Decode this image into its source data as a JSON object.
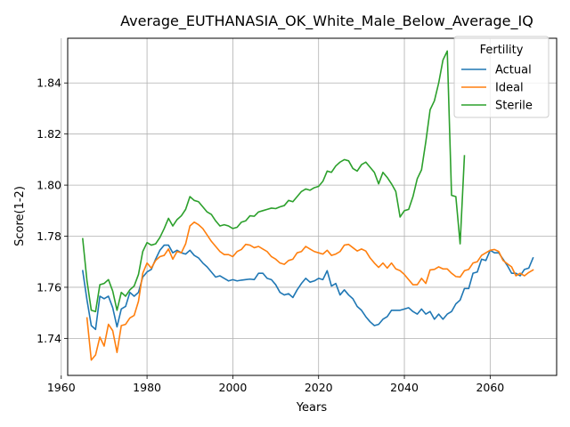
{
  "chart_data": {
    "type": "line",
    "title": "Average_EUTHANASIA_OK_White_Male_Below_Average_IQ",
    "xlabel": "Years",
    "ylabel": "Score(1-2)",
    "xlim": [
      1961.5,
      2075.5
    ],
    "ylim": [
      1.7255,
      1.8575
    ],
    "xticks": [
      1960,
      1980,
      2000,
      2020,
      2040,
      2060
    ],
    "yticks": [
      1.74,
      1.76,
      1.78,
      1.8,
      1.82,
      1.84
    ],
    "ytick_labels": [
      "1.74",
      "1.76",
      "1.78",
      "1.80",
      "1.82",
      "1.84"
    ],
    "grid": true,
    "legend": {
      "title": "Fertility",
      "placement": "top-right"
    },
    "series": [
      {
        "name": "Actual",
        "color": "#1f77b4",
        "points": [
          [
            1965,
            1.7665
          ],
          [
            1966,
            1.755
          ],
          [
            1967,
            1.745
          ],
          [
            1968,
            1.7435
          ],
          [
            1969,
            1.7565
          ],
          [
            1970,
            1.7555
          ],
          [
            1971,
            1.7565
          ],
          [
            1972,
            1.752
          ],
          [
            1973,
            1.7445
          ],
          [
            1974,
            1.7515
          ],
          [
            1975,
            1.7525
          ],
          [
            1976,
            1.758
          ],
          [
            1977,
            1.7565
          ],
          [
            1978,
            1.758
          ],
          [
            1979,
            1.764
          ],
          [
            1980,
            1.766
          ],
          [
            1981,
            1.767
          ],
          [
            1982,
            1.771
          ],
          [
            1983,
            1.7745
          ],
          [
            1984,
            1.7765
          ],
          [
            1985,
            1.7765
          ],
          [
            1986,
            1.7735
          ],
          [
            1987,
            1.7745
          ],
          [
            1988,
            1.7735
          ],
          [
            1989,
            1.773
          ],
          [
            1990,
            1.7745
          ],
          [
            1991,
            1.7725
          ],
          [
            1992,
            1.7715
          ],
          [
            1993,
            1.7695
          ],
          [
            1994,
            1.768
          ],
          [
            1995,
            1.766
          ],
          [
            1996,
            1.764
          ],
          [
            1997,
            1.7645
          ],
          [
            1998,
            1.7635
          ],
          [
            1999,
            1.7625
          ],
          [
            2000,
            1.763
          ],
          [
            2001,
            1.7625
          ],
          [
            2002,
            1.7628
          ],
          [
            2003,
            1.763
          ],
          [
            2004,
            1.7632
          ],
          [
            2005,
            1.763
          ],
          [
            2006,
            1.7655
          ],
          [
            2007,
            1.7655
          ],
          [
            2008,
            1.7635
          ],
          [
            2009,
            1.763
          ],
          [
            2010,
            1.761
          ],
          [
            2011,
            1.758
          ],
          [
            2012,
            1.757
          ],
          [
            2013,
            1.7575
          ],
          [
            2014,
            1.756
          ],
          [
            2015,
            1.759
          ],
          [
            2016,
            1.7615
          ],
          [
            2017,
            1.7635
          ],
          [
            2018,
            1.762
          ],
          [
            2019,
            1.7625
          ],
          [
            2020,
            1.7635
          ],
          [
            2021,
            1.763
          ],
          [
            2022,
            1.7665
          ],
          [
            2023,
            1.7605
          ],
          [
            2024,
            1.7615
          ],
          [
            2025,
            1.757
          ],
          [
            2026,
            1.759
          ],
          [
            2027,
            1.757
          ],
          [
            2028,
            1.7555
          ],
          [
            2029,
            1.7525
          ],
          [
            2030,
            1.751
          ],
          [
            2031,
            1.7485
          ],
          [
            2032,
            1.7465
          ],
          [
            2033,
            1.745
          ],
          [
            2034,
            1.7455
          ],
          [
            2035,
            1.7475
          ],
          [
            2036,
            1.7485
          ],
          [
            2037,
            1.751
          ],
          [
            2038,
            1.751
          ],
          [
            2039,
            1.751
          ],
          [
            2040,
            1.7515
          ],
          [
            2041,
            1.752
          ],
          [
            2042,
            1.7505
          ],
          [
            2043,
            1.7495
          ],
          [
            2044,
            1.7515
          ],
          [
            2045,
            1.7495
          ],
          [
            2046,
            1.7505
          ],
          [
            2047,
            1.7475
          ],
          [
            2048,
            1.7495
          ],
          [
            2049,
            1.7475
          ],
          [
            2050,
            1.7495
          ],
          [
            2051,
            1.7505
          ],
          [
            2052,
            1.7535
          ],
          [
            2053,
            1.755
          ],
          [
            2054,
            1.7595
          ],
          [
            2055,
            1.7595
          ],
          [
            2056,
            1.7655
          ],
          [
            2057,
            1.766
          ],
          [
            2058,
            1.771
          ],
          [
            2059,
            1.7705
          ],
          [
            2060,
            1.7745
          ],
          [
            2061,
            1.7735
          ],
          [
            2062,
            1.7735
          ],
          [
            2063,
            1.771
          ],
          [
            2064,
            1.7685
          ],
          [
            2065,
            1.7655
          ],
          [
            2066,
            1.7655
          ],
          [
            2067,
            1.7645
          ],
          [
            2068,
            1.767
          ],
          [
            2069,
            1.7675
          ],
          [
            2070,
            1.7715
          ]
        ]
      },
      {
        "name": "Ideal",
        "color": "#ff7f0e",
        "points": [
          [
            1966,
            1.748
          ],
          [
            1967,
            1.7315
          ],
          [
            1968,
            1.7335
          ],
          [
            1969,
            1.7405
          ],
          [
            1970,
            1.737
          ],
          [
            1971,
            1.7455
          ],
          [
            1972,
            1.743
          ],
          [
            1973,
            1.7345
          ],
          [
            1974,
            1.745
          ],
          [
            1975,
            1.7455
          ],
          [
            1976,
            1.748
          ],
          [
            1977,
            1.749
          ],
          [
            1978,
            1.7545
          ],
          [
            1979,
            1.7655
          ],
          [
            1980,
            1.7695
          ],
          [
            1981,
            1.7675
          ],
          [
            1982,
            1.7705
          ],
          [
            1983,
            1.772
          ],
          [
            1984,
            1.7725
          ],
          [
            1985,
            1.775
          ],
          [
            1986,
            1.771
          ],
          [
            1987,
            1.774
          ],
          [
            1988,
            1.7735
          ],
          [
            1989,
            1.777
          ],
          [
            1990,
            1.784
          ],
          [
            1991,
            1.7855
          ],
          [
            1992,
            1.7845
          ],
          [
            1993,
            1.783
          ],
          [
            1994,
            1.7805
          ],
          [
            1995,
            1.778
          ],
          [
            1996,
            1.776
          ],
          [
            1997,
            1.774
          ],
          [
            1998,
            1.7728
          ],
          [
            1999,
            1.7728
          ],
          [
            2000,
            1.772
          ],
          [
            2001,
            1.774
          ],
          [
            2002,
            1.7748
          ],
          [
            2003,
            1.7768
          ],
          [
            2004,
            1.7765
          ],
          [
            2005,
            1.7755
          ],
          [
            2006,
            1.776
          ],
          [
            2007,
            1.775
          ],
          [
            2008,
            1.774
          ],
          [
            2009,
            1.772
          ],
          [
            2010,
            1.771
          ],
          [
            2011,
            1.7695
          ],
          [
            2012,
            1.769
          ],
          [
            2013,
            1.7705
          ],
          [
            2014,
            1.771
          ],
          [
            2015,
            1.7735
          ],
          [
            2016,
            1.774
          ],
          [
            2017,
            1.776
          ],
          [
            2018,
            1.775
          ],
          [
            2019,
            1.774
          ],
          [
            2020,
            1.7735
          ],
          [
            2021,
            1.773
          ],
          [
            2022,
            1.7745
          ],
          [
            2023,
            1.7725
          ],
          [
            2024,
            1.773
          ],
          [
            2025,
            1.774
          ],
          [
            2026,
            1.7765
          ],
          [
            2027,
            1.7768
          ],
          [
            2028,
            1.7755
          ],
          [
            2029,
            1.7742
          ],
          [
            2030,
            1.775
          ],
          [
            2031,
            1.7742
          ],
          [
            2032,
            1.7715
          ],
          [
            2033,
            1.7695
          ],
          [
            2034,
            1.7678
          ],
          [
            2035,
            1.7695
          ],
          [
            2036,
            1.7675
          ],
          [
            2037,
            1.7695
          ],
          [
            2038,
            1.7672
          ],
          [
            2039,
            1.7665
          ],
          [
            2040,
            1.765
          ],
          [
            2041,
            1.763
          ],
          [
            2042,
            1.761
          ],
          [
            2043,
            1.761
          ],
          [
            2044,
            1.7635
          ],
          [
            2045,
            1.7615
          ],
          [
            2046,
            1.7668
          ],
          [
            2047,
            1.767
          ],
          [
            2048,
            1.768
          ],
          [
            2049,
            1.7672
          ],
          [
            2050,
            1.7672
          ],
          [
            2051,
            1.7655
          ],
          [
            2052,
            1.7642
          ],
          [
            2053,
            1.764
          ],
          [
            2054,
            1.7665
          ],
          [
            2055,
            1.767
          ],
          [
            2056,
            1.7695
          ],
          [
            2057,
            1.77
          ],
          [
            2058,
            1.7725
          ],
          [
            2059,
            1.7735
          ],
          [
            2060,
            1.7745
          ],
          [
            2061,
            1.7748
          ],
          [
            2062,
            1.774
          ],
          [
            2063,
            1.7705
          ],
          [
            2064,
            1.7692
          ],
          [
            2065,
            1.768
          ],
          [
            2066,
            1.7645
          ],
          [
            2067,
            1.7655
          ],
          [
            2068,
            1.7645
          ],
          [
            2069,
            1.7658
          ],
          [
            2070,
            1.7668
          ]
        ]
      },
      {
        "name": "Sterile",
        "color": "#2ca02c",
        "points": [
          [
            1965,
            1.779
          ],
          [
            1966,
            1.7625
          ],
          [
            1967,
            1.751
          ],
          [
            1968,
            1.7505
          ],
          [
            1969,
            1.761
          ],
          [
            1970,
            1.7615
          ],
          [
            1971,
            1.763
          ],
          [
            1972,
            1.7585
          ],
          [
            1973,
            1.751
          ],
          [
            1974,
            1.758
          ],
          [
            1975,
            1.7565
          ],
          [
            1976,
            1.759
          ],
          [
            1977,
            1.7605
          ],
          [
            1978,
            1.765
          ],
          [
            1979,
            1.774
          ],
          [
            1980,
            1.7775
          ],
          [
            1981,
            1.7765
          ],
          [
            1982,
            1.777
          ],
          [
            1983,
            1.7795
          ],
          [
            1984,
            1.783
          ],
          [
            1985,
            1.787
          ],
          [
            1986,
            1.784
          ],
          [
            1987,
            1.7865
          ],
          [
            1988,
            1.788
          ],
          [
            1989,
            1.7905
          ],
          [
            1990,
            1.7955
          ],
          [
            1991,
            1.794
          ],
          [
            1992,
            1.7935
          ],
          [
            1993,
            1.7915
          ],
          [
            1994,
            1.7895
          ],
          [
            1995,
            1.7885
          ],
          [
            1996,
            1.786
          ],
          [
            1997,
            1.784
          ],
          [
            1998,
            1.7845
          ],
          [
            1999,
            1.784
          ],
          [
            2000,
            1.783
          ],
          [
            2001,
            1.7835
          ],
          [
            2002,
            1.7855
          ],
          [
            2003,
            1.786
          ],
          [
            2004,
            1.788
          ],
          [
            2005,
            1.7878
          ],
          [
            2006,
            1.7895
          ],
          [
            2007,
            1.79
          ],
          [
            2008,
            1.7905
          ],
          [
            2009,
            1.791
          ],
          [
            2010,
            1.7908
          ],
          [
            2011,
            1.7915
          ],
          [
            2012,
            1.792
          ],
          [
            2013,
            1.794
          ],
          [
            2014,
            1.7935
          ],
          [
            2015,
            1.7955
          ],
          [
            2016,
            1.7975
          ],
          [
            2017,
            1.7985
          ],
          [
            2018,
            1.798
          ],
          [
            2019,
            1.799
          ],
          [
            2020,
            1.7995
          ],
          [
            2021,
            1.8015
          ],
          [
            2022,
            1.8055
          ],
          [
            2023,
            1.805
          ],
          [
            2024,
            1.8075
          ],
          [
            2025,
            1.809
          ],
          [
            2026,
            1.81
          ],
          [
            2027,
            1.8095
          ],
          [
            2028,
            1.8065
          ],
          [
            2029,
            1.8055
          ],
          [
            2030,
            1.808
          ],
          [
            2031,
            1.809
          ],
          [
            2032,
            1.807
          ],
          [
            2033,
            1.805
          ],
          [
            2034,
            1.8005
          ],
          [
            2035,
            1.805
          ],
          [
            2036,
            1.803
          ],
          [
            2037,
            1.8005
          ],
          [
            2038,
            1.7975
          ],
          [
            2039,
            1.7875
          ],
          [
            2040,
            1.79
          ],
          [
            2041,
            1.7905
          ],
          [
            2042,
            1.7955
          ],
          [
            2043,
            1.8025
          ],
          [
            2044,
            1.806
          ],
          [
            2045,
            1.817
          ],
          [
            2046,
            1.8295
          ],
          [
            2047,
            1.833
          ],
          [
            2048,
            1.84
          ],
          [
            2049,
            1.849
          ],
          [
            2050,
            1.8525
          ],
          [
            2051,
            1.796
          ],
          [
            2052,
            1.7955
          ],
          [
            2053,
            1.777
          ],
          [
            2054,
            1.8115
          ]
        ]
      }
    ]
  }
}
